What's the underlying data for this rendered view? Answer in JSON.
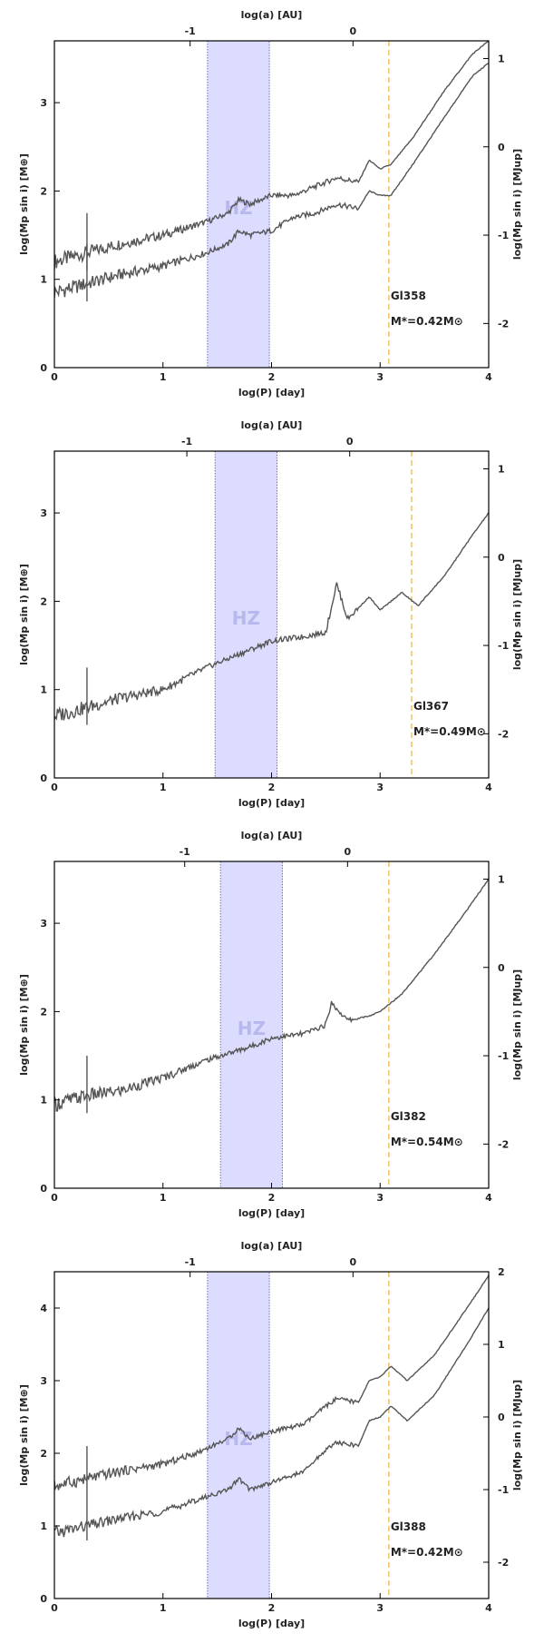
{
  "labels": {
    "top_axis": "log(a) [AU]",
    "bottom_axis": "log(P) [day]",
    "left_axis": "log(Mp sin i) [M⊕]",
    "right_axis": "log(Mp sin i) [MJup]",
    "hz": "HZ"
  },
  "colors": {
    "curve": "#555555",
    "hz_fill": "#dcdcff",
    "hz_border": "#6f6fc8",
    "hz_text": "#b8b8ee",
    "baseline": "#f3c46a",
    "axis": "#000000"
  },
  "chart_data": [
    {
      "type": "line",
      "title": "Gl358",
      "mass_label": "M*=0.42M⊙",
      "xlabel": "log(P) [day]",
      "ylabel": "log(Mp sin i) [M⊕]",
      "xlim": [
        0,
        4
      ],
      "ylim": [
        0,
        3.7
      ],
      "xticks": [
        0,
        1,
        2,
        3,
        4
      ],
      "yticks": [
        0,
        1,
        2,
        3
      ],
      "top_axis": {
        "label": "log(a) [AU]",
        "ticks": [
          {
            "value": "-1",
            "at_logP": 1.25
          },
          {
            "value": "0",
            "at_logP": 2.75
          }
        ]
      },
      "right_axis": {
        "label": "log(Mp sin i) [MJup]",
        "ticks": [
          {
            "value": 1,
            "at": 3.5
          },
          {
            "value": 0,
            "at": 2.5
          },
          {
            "value": -1,
            "at": 1.5
          },
          {
            "value": -2,
            "at": 0.5
          }
        ]
      },
      "hz": [
        1.41,
        1.98
      ],
      "baseline_logP": 3.08,
      "series": [
        {
          "name": "upper limit",
          "x": [
            0,
            0.3,
            0.6,
            1.0,
            1.4,
            1.6,
            1.7,
            1.8,
            2.0,
            2.2,
            2.4,
            2.6,
            2.8,
            2.9,
            3.0,
            3.1,
            3.3,
            3.6,
            3.85,
            4.0
          ],
          "y": [
            1.2,
            1.3,
            1.4,
            1.5,
            1.65,
            1.75,
            1.9,
            1.85,
            1.95,
            1.95,
            2.05,
            2.15,
            2.1,
            2.35,
            2.25,
            2.3,
            2.6,
            3.15,
            3.55,
            3.7
          ]
        },
        {
          "name": "detection threshold",
          "x": [
            0,
            0.3,
            0.6,
            1.0,
            1.4,
            1.6,
            1.7,
            1.8,
            2.0,
            2.2,
            2.4,
            2.6,
            2.8,
            2.9,
            3.0,
            3.1,
            3.3,
            3.6,
            3.85,
            4.0
          ],
          "y": [
            0.85,
            0.95,
            1.05,
            1.15,
            1.3,
            1.4,
            1.55,
            1.5,
            1.55,
            1.7,
            1.75,
            1.85,
            1.8,
            2.0,
            1.95,
            1.95,
            2.3,
            2.85,
            3.3,
            3.45
          ]
        }
      ]
    },
    {
      "type": "line",
      "title": "Gl367",
      "mass_label": "M*=0.49M⊙",
      "xlabel": "log(P) [day]",
      "ylabel": "log(Mp sin i) [M⊕]",
      "xlim": [
        0,
        4
      ],
      "ylim": [
        0,
        3.7
      ],
      "xticks": [
        0,
        1,
        2,
        3,
        4
      ],
      "yticks": [
        0,
        1,
        2,
        3
      ],
      "top_axis": {
        "label": "log(a) [AU]",
        "ticks": [
          {
            "value": "-1",
            "at_logP": 1.22
          },
          {
            "value": "0",
            "at_logP": 2.72
          }
        ]
      },
      "right_axis": {
        "label": "log(Mp sin i) [MJup]",
        "ticks": [
          {
            "value": 1,
            "at": 3.5
          },
          {
            "value": 0,
            "at": 2.5
          },
          {
            "value": -1,
            "at": 1.5
          },
          {
            "value": -2,
            "at": 0.5
          }
        ]
      },
      "hz": [
        1.48,
        2.05
      ],
      "baseline_logP": 3.29,
      "series": [
        {
          "name": "detection threshold",
          "x": [
            0,
            0.3,
            0.6,
            1.0,
            1.4,
            1.8,
            2.0,
            2.3,
            2.5,
            2.6,
            2.7,
            2.9,
            3.0,
            3.2,
            3.35,
            3.6,
            3.85,
            4.0
          ],
          "y": [
            0.7,
            0.8,
            0.9,
            1.0,
            1.25,
            1.45,
            1.55,
            1.6,
            1.65,
            2.2,
            1.8,
            2.05,
            1.9,
            2.1,
            1.95,
            2.3,
            2.75,
            3.0
          ]
        }
      ]
    },
    {
      "type": "line",
      "title": "Gl382",
      "mass_label": "M*=0.54M⊙",
      "xlabel": "log(P) [day]",
      "ylabel": "log(Mp sin i) [M⊕]",
      "xlim": [
        0,
        4
      ],
      "ylim": [
        0,
        3.7
      ],
      "xticks": [
        0,
        1,
        2,
        3,
        4
      ],
      "yticks": [
        0,
        1,
        2,
        3
      ],
      "top_axis": {
        "label": "log(a) [AU]",
        "ticks": [
          {
            "value": "-1",
            "at_logP": 1.2
          },
          {
            "value": "0",
            "at_logP": 2.7
          }
        ]
      },
      "right_axis": {
        "label": "log(Mp sin i) [MJup]",
        "ticks": [
          {
            "value": 1,
            "at": 3.5
          },
          {
            "value": 0,
            "at": 2.5
          },
          {
            "value": -1,
            "at": 1.5
          },
          {
            "value": -2,
            "at": 0.5
          }
        ]
      },
      "hz": [
        1.53,
        2.1
      ],
      "baseline_logP": 3.08,
      "series": [
        {
          "name": "detection threshold",
          "x": [
            0,
            0.3,
            0.6,
            1.0,
            1.4,
            1.8,
            2.0,
            2.3,
            2.5,
            2.55,
            2.7,
            2.9,
            3.0,
            3.2,
            3.5,
            3.8,
            4.0
          ],
          "y": [
            0.95,
            1.05,
            1.1,
            1.25,
            1.45,
            1.6,
            1.7,
            1.75,
            1.85,
            2.1,
            1.9,
            1.95,
            2.0,
            2.2,
            2.65,
            3.15,
            3.5
          ]
        }
      ]
    },
    {
      "type": "line",
      "title": "Gl388",
      "mass_label": "M*=0.42M⊙",
      "xlabel": "log(P) [day]",
      "ylabel": "log(Mp sin i) [M⊕]",
      "xlim": [
        0,
        4
      ],
      "ylim": [
        0,
        4.5
      ],
      "xticks": [
        0,
        1,
        2,
        3,
        4
      ],
      "yticks": [
        0,
        1,
        2,
        3,
        4
      ],
      "top_axis": {
        "label": "log(a) [AU]",
        "ticks": [
          {
            "value": "-1",
            "at_logP": 1.25
          },
          {
            "value": "0",
            "at_logP": 2.75
          }
        ]
      },
      "right_axis": {
        "label": "log(Mp sin i) [MJup]",
        "ticks": [
          {
            "value": 2,
            "at": 4.5
          },
          {
            "value": 1,
            "at": 3.5
          },
          {
            "value": 0,
            "at": 2.5
          },
          {
            "value": -1,
            "at": 1.5
          },
          {
            "value": -2,
            "at": 0.5
          }
        ]
      },
      "hz": [
        1.41,
        1.98
      ],
      "baseline_logP": 3.08,
      "series": [
        {
          "name": "upper limit",
          "x": [
            0,
            0.3,
            0.6,
            1.0,
            1.3,
            1.6,
            1.7,
            1.8,
            2.0,
            2.3,
            2.5,
            2.6,
            2.8,
            2.9,
            3.0,
            3.1,
            3.25,
            3.5,
            3.8,
            4.0
          ],
          "y": [
            1.55,
            1.65,
            1.75,
            1.85,
            2.0,
            2.2,
            2.35,
            2.2,
            2.3,
            2.4,
            2.65,
            2.75,
            2.7,
            3.0,
            3.05,
            3.2,
            3.0,
            3.35,
            4.0,
            4.45
          ]
        },
        {
          "name": "detection threshold",
          "x": [
            0,
            0.3,
            0.6,
            1.0,
            1.3,
            1.6,
            1.7,
            1.8,
            2.0,
            2.3,
            2.5,
            2.6,
            2.8,
            2.9,
            3.0,
            3.1,
            3.25,
            3.5,
            3.8,
            4.0
          ],
          "y": [
            0.9,
            1.0,
            1.1,
            1.2,
            1.35,
            1.5,
            1.65,
            1.5,
            1.6,
            1.75,
            2.05,
            2.15,
            2.1,
            2.45,
            2.5,
            2.65,
            2.45,
            2.8,
            3.5,
            4.0
          ]
        }
      ]
    }
  ]
}
